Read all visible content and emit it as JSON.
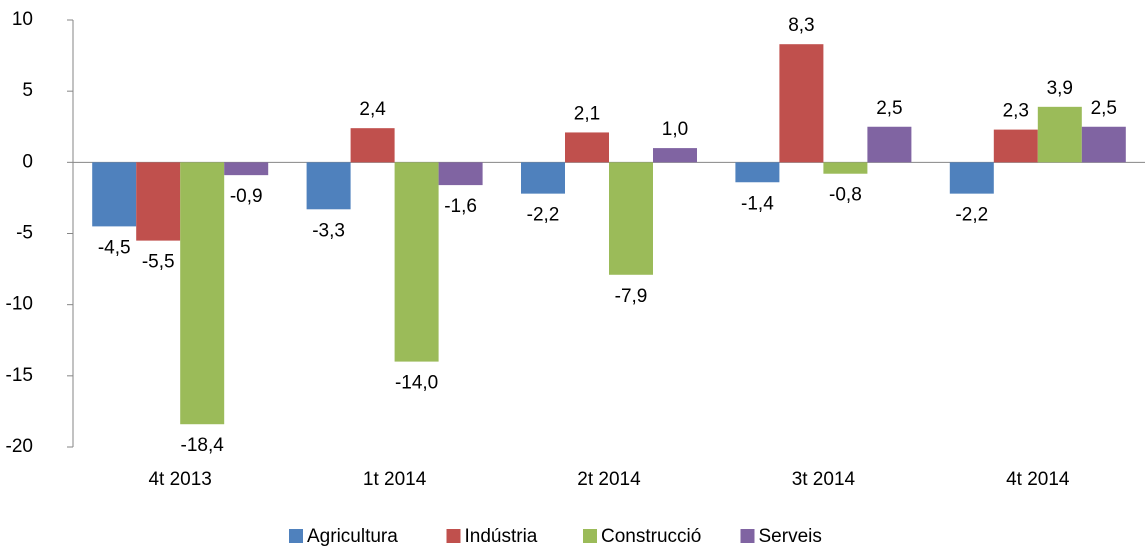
{
  "chart_data": {
    "type": "bar",
    "categories": [
      "4t 2013",
      "1t 2014",
      "2t 2014",
      "3t 2014",
      "4t 2014"
    ],
    "series": [
      {
        "name": "Agricultura",
        "color": "#4f81bd",
        "values": [
          -4.5,
          -3.3,
          -2.2,
          -1.4,
          -2.2
        ],
        "value_labels": [
          "-4,5",
          "-3,3",
          "-2,2",
          "-1,4",
          "-2,2"
        ]
      },
      {
        "name": "Indústria",
        "color": "#c0504d",
        "values": [
          -5.5,
          2.4,
          2.1,
          8.3,
          2.3
        ],
        "value_labels": [
          "-5,5",
          "2,4",
          "2,1",
          "8,3",
          "2,3"
        ]
      },
      {
        "name": "Construcció",
        "color": "#9bbb59",
        "values": [
          -18.4,
          -14.0,
          -7.9,
          -0.8,
          3.9
        ],
        "value_labels": [
          "-18,4",
          "-14,0",
          "-7,9",
          "-0,8",
          "3,9"
        ]
      },
      {
        "name": "Serveis",
        "color": "#8064a2",
        "values": [
          -0.9,
          -1.6,
          1.0,
          2.5,
          2.5
        ],
        "value_labels": [
          "-0,9",
          "-1,6",
          "1,0",
          "2,5",
          "2,5"
        ]
      }
    ],
    "ylim": [
      -20,
      10
    ],
    "yticks": [
      10,
      5,
      0,
      -5,
      -10,
      -15,
      -20
    ],
    "grid": false,
    "legend": "bottom"
  }
}
